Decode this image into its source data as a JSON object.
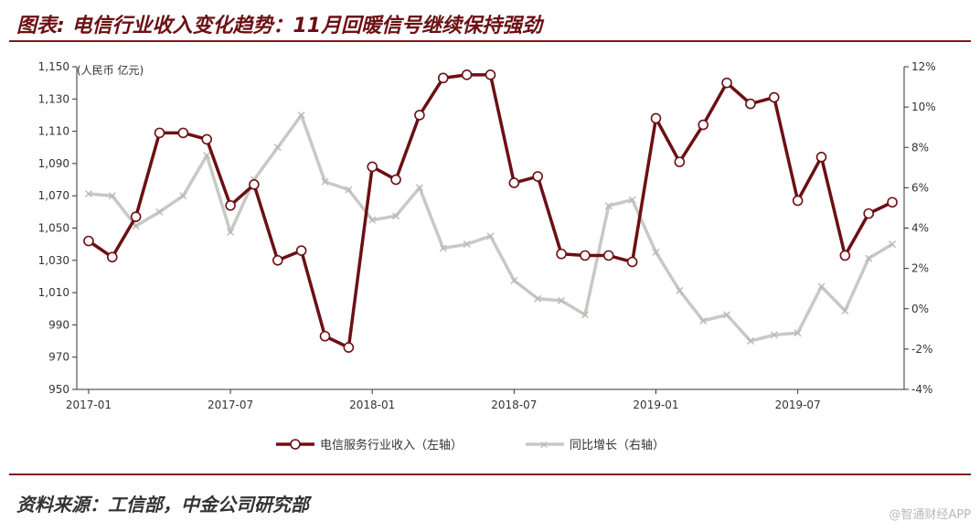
{
  "header": {
    "title": "图表: 电信行业收入变化趋势：11月回暖信号继续保持强劲"
  },
  "footer": {
    "source": "资料来源：工信部，中金公司研究部",
    "watermark": "@智通财经APP"
  },
  "chart_data": {
    "type": "line",
    "title": "",
    "unit_label": "(人民币 亿元)",
    "x": [
      "2017-01",
      "2017-02",
      "2017-03",
      "2017-04",
      "2017-05",
      "2017-06",
      "2017-07",
      "2017-08",
      "2017-09",
      "2017-10",
      "2017-11",
      "2017-12",
      "2018-01",
      "2018-02",
      "2018-03",
      "2018-04",
      "2018-05",
      "2018-06",
      "2018-07",
      "2018-08",
      "2018-09",
      "2018-10",
      "2018-11",
      "2018-12",
      "2019-01",
      "2019-02",
      "2019-03",
      "2019-04",
      "2019-05",
      "2019-06",
      "2019-07",
      "2019-08",
      "2019-09",
      "2019-10",
      "2019-11"
    ],
    "x_tick_labels": [
      "2017-01",
      "2017-07",
      "2018-01",
      "2018-07",
      "2019-01",
      "2019-07"
    ],
    "x_tick_index": [
      0,
      6,
      12,
      18,
      24,
      30
    ],
    "y_left": {
      "ylim": [
        950,
        1150
      ],
      "ticks": [
        950,
        970,
        990,
        1010,
        1030,
        1050,
        1070,
        1090,
        1110,
        1130,
        1150
      ],
      "tick_labels": [
        "950",
        "970",
        "990",
        "1,010",
        "1,030",
        "1,050",
        "1,070",
        "1,090",
        "1,110",
        "1,130",
        "1,150"
      ]
    },
    "y_right": {
      "ylim": [
        -4,
        12
      ],
      "ticks": [
        -4,
        -2,
        0,
        2,
        4,
        6,
        8,
        10,
        12
      ],
      "tick_labels": [
        "-4%",
        "-2%",
        "0%",
        "2%",
        "4%",
        "6%",
        "8%",
        "10%",
        "12%"
      ]
    },
    "grid": false,
    "legend_position": "bottom",
    "series": [
      {
        "name": "电信服务行业收入（左轴）",
        "axis": "left",
        "color": "#6b1014",
        "values": [
          1042,
          1032,
          1057,
          1109,
          1109,
          1105,
          1064,
          1077,
          1030,
          1036,
          983,
          976,
          1088,
          1080,
          1120,
          1143,
          1145,
          1145,
          1078,
          1082,
          1034,
          1033,
          1033,
          1029,
          1118,
          1091,
          1114,
          1140,
          1127,
          1131,
          1067,
          1094,
          1033,
          1059,
          1066
        ]
      },
      {
        "name": "同比增长（右轴）",
        "axis": "right",
        "color": "#c8c8c4",
        "values": [
          5.7,
          5.6,
          4.1,
          4.8,
          5.6,
          7.6,
          3.8,
          6.4,
          8.0,
          9.6,
          6.3,
          5.9,
          4.4,
          4.6,
          6.0,
          3.0,
          3.2,
          3.6,
          1.4,
          0.5,
          0.4,
          -0.3,
          5.1,
          5.4,
          2.8,
          0.9,
          -0.6,
          -0.3,
          -1.6,
          -1.3,
          -1.2,
          1.1,
          -0.1,
          2.5,
          3.2
        ]
      }
    ]
  }
}
